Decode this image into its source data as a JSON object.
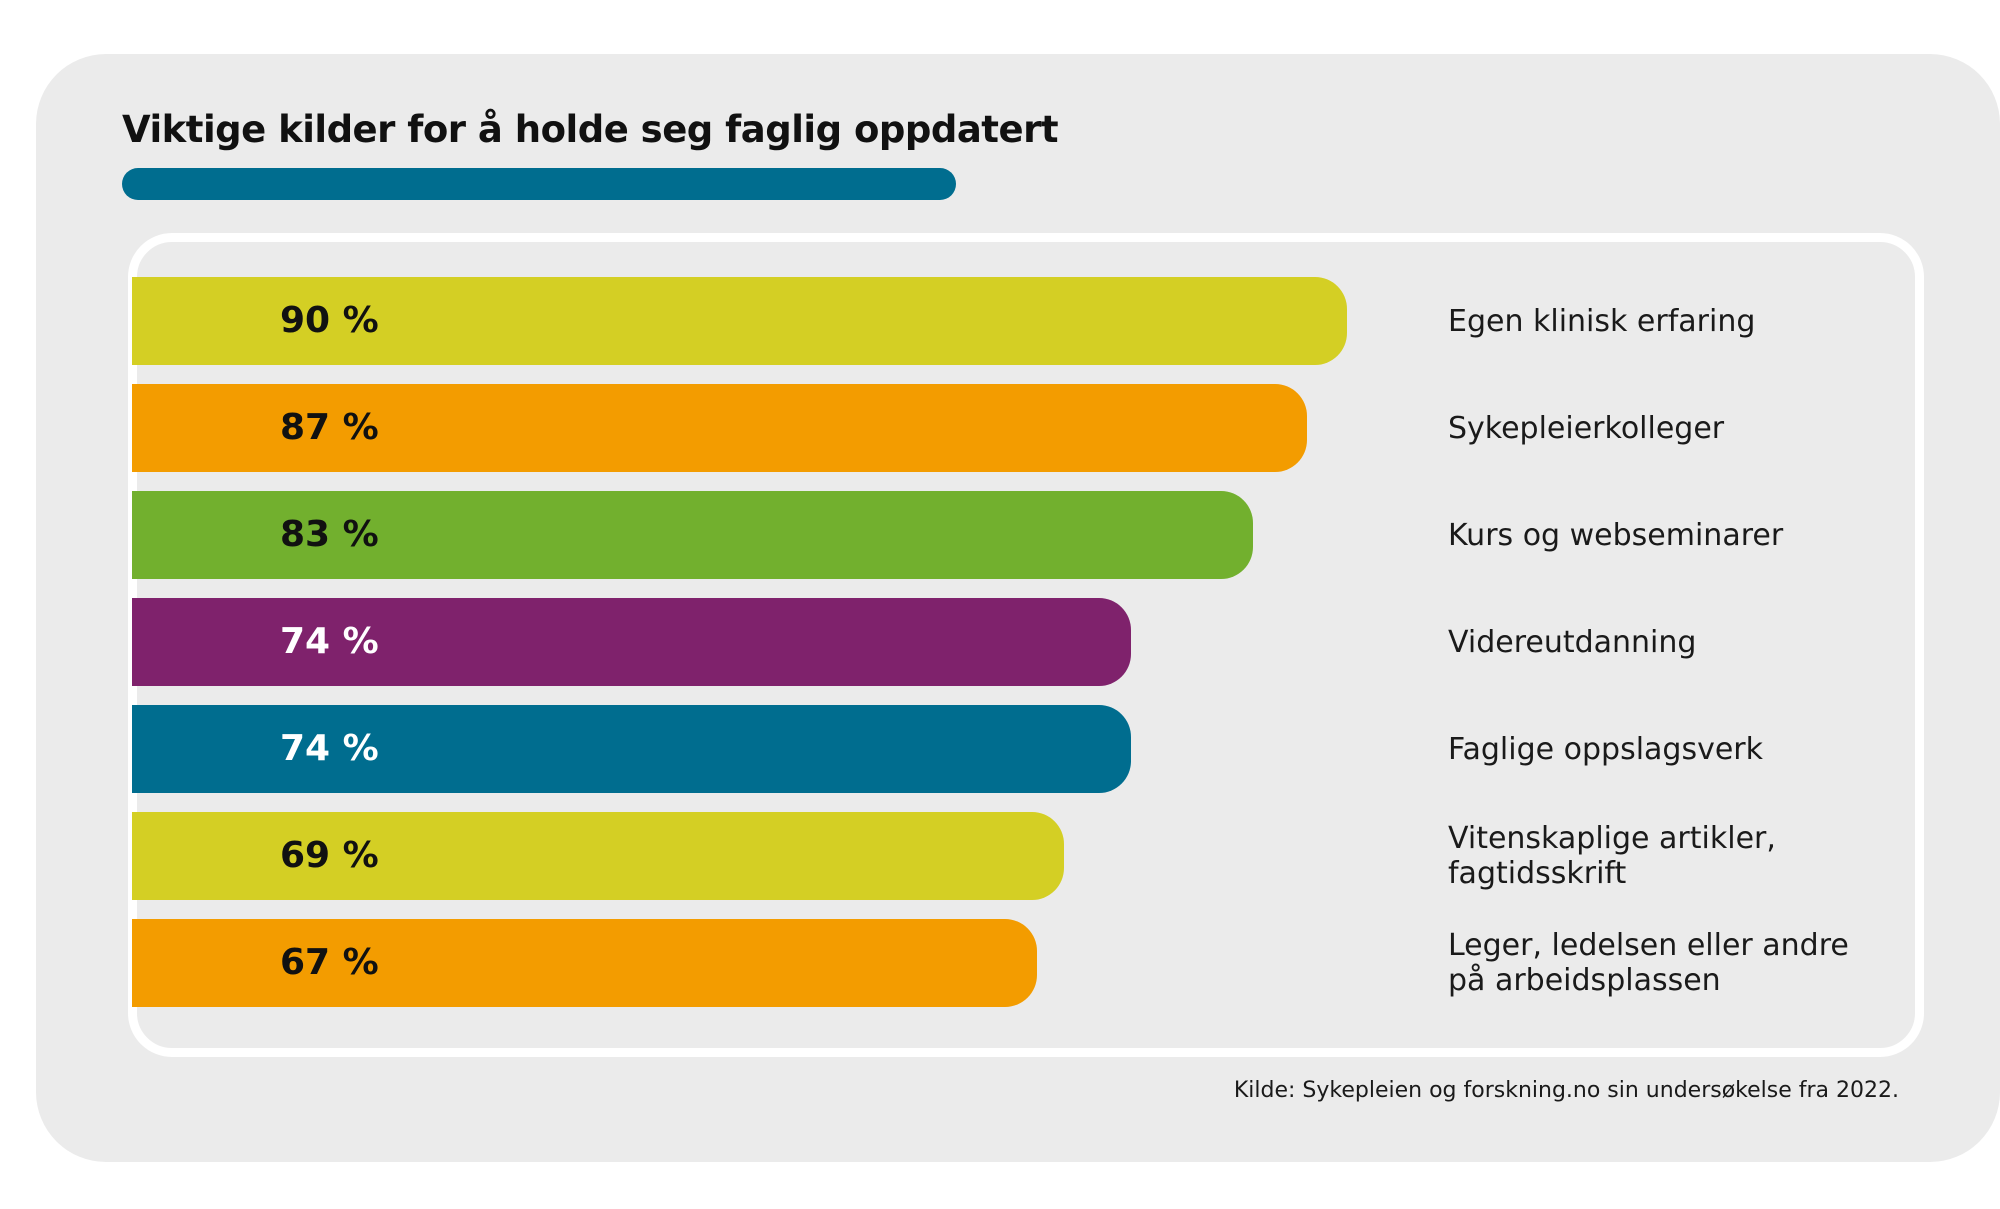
{
  "colors": {
    "card_background": "#ebebeb",
    "title_underline": "#006d8f"
  },
  "chart_data": {
    "type": "bar",
    "orientation": "horizontal",
    "title": "Viktige kilder for å holde seg faglig oppdatert",
    "categories": [
      "Egen klinisk erfaring",
      "Sykepleierkolleger",
      "Kurs og webseminarer",
      "Videreutdanning",
      "Faglige oppslagsverk",
      "Vitenskaplige artikler,\nfagtidsskrift",
      "Leger, ledelsen eller andre\npå arbeidsplassen"
    ],
    "values": [
      90,
      87,
      83,
      74,
      74,
      69,
      67
    ],
    "value_labels": [
      "90 %",
      "87 %",
      "83 %",
      "74 %",
      "74 %",
      "69 %",
      "67 %"
    ],
    "bar_colors": [
      "#d4cf24",
      "#f39c00",
      "#72b02e",
      "#7f226c",
      "#006d8f",
      "#d4cf24",
      "#f39c00"
    ],
    "value_label_colors": [
      "#111111",
      "#111111",
      "#111111",
      "#ffffff",
      "#ffffff",
      "#111111",
      "#111111"
    ],
    "source": "Kilde: Sykepleien og forskning.no sin undersøkelse fra 2022."
  }
}
